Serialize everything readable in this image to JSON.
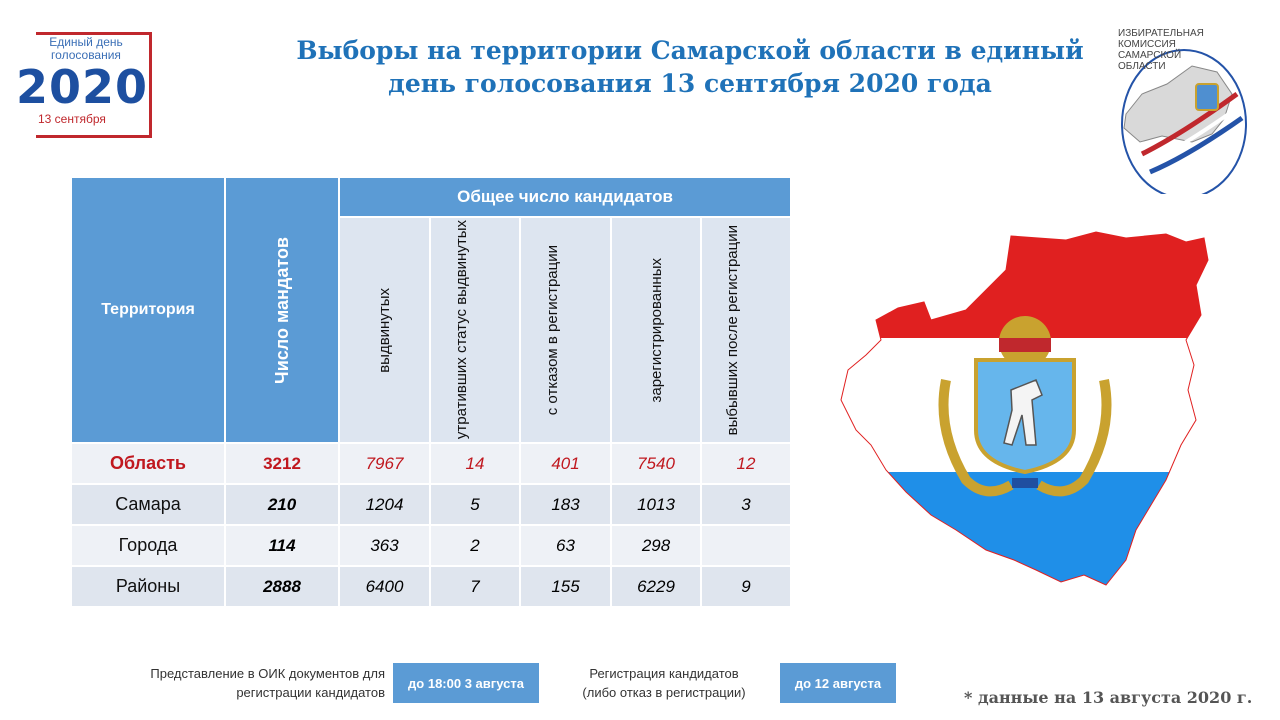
{
  "logo_left": {
    "line1": "Единый день",
    "line2": "голосования",
    "year": "2020",
    "date": "13 сентября"
  },
  "title": {
    "line1": "Выборы на территории Самарской области в единый",
    "line2": "день голосования 13 сентября 2020 года"
  },
  "logo_right": {
    "line1": "ИЗБИРАТЕЛЬНАЯ",
    "line2": "КОМИССИЯ",
    "line3": "САМАРСКОЙ",
    "line4": "ОБЛАСТИ"
  },
  "table": {
    "col_territory": "Территория",
    "col_mandates": "Число мандатов",
    "group_header": "Общее число кандидатов",
    "sub_headers": [
      "выдвинутых",
      "утративших статус выдвинутых",
      "с отказом в регистрации",
      "зарегистрированных",
      "выбывших после регистрации"
    ],
    "rows": [
      {
        "territory": "Область",
        "mandates": "3212",
        "values": [
          "7967",
          "14",
          "401",
          "7540",
          "12"
        ]
      },
      {
        "territory": "Самара",
        "mandates": "210",
        "values": [
          "1204",
          "5",
          "183",
          "1013",
          "3"
        ]
      },
      {
        "territory": "Города",
        "mandates": "114",
        "values": [
          "363",
          "2",
          "63",
          "298",
          ""
        ]
      },
      {
        "territory": "Районы",
        "mandates": "2888",
        "values": [
          "6400",
          "7",
          "155",
          "6229",
          "9"
        ]
      }
    ]
  },
  "footer": {
    "docs_label_1": "Представление в ОИК документов для",
    "docs_label_2": "регистрации кандидатов",
    "docs_deadline": "до 18:00 3 августа",
    "reg_label_1": "Регистрация кандидатов",
    "reg_label_2": "(либо отказ в регистрации)",
    "reg_deadline": "до 12 августа",
    "note": "*  данные на 13 августа 2020 г."
  },
  "colors": {
    "header_blue": "#5b9bd5",
    "title_blue": "#1f72b8",
    "accent_red": "#c0181f",
    "flag_red": "#e02020",
    "flag_blue": "#1f8fe8"
  }
}
